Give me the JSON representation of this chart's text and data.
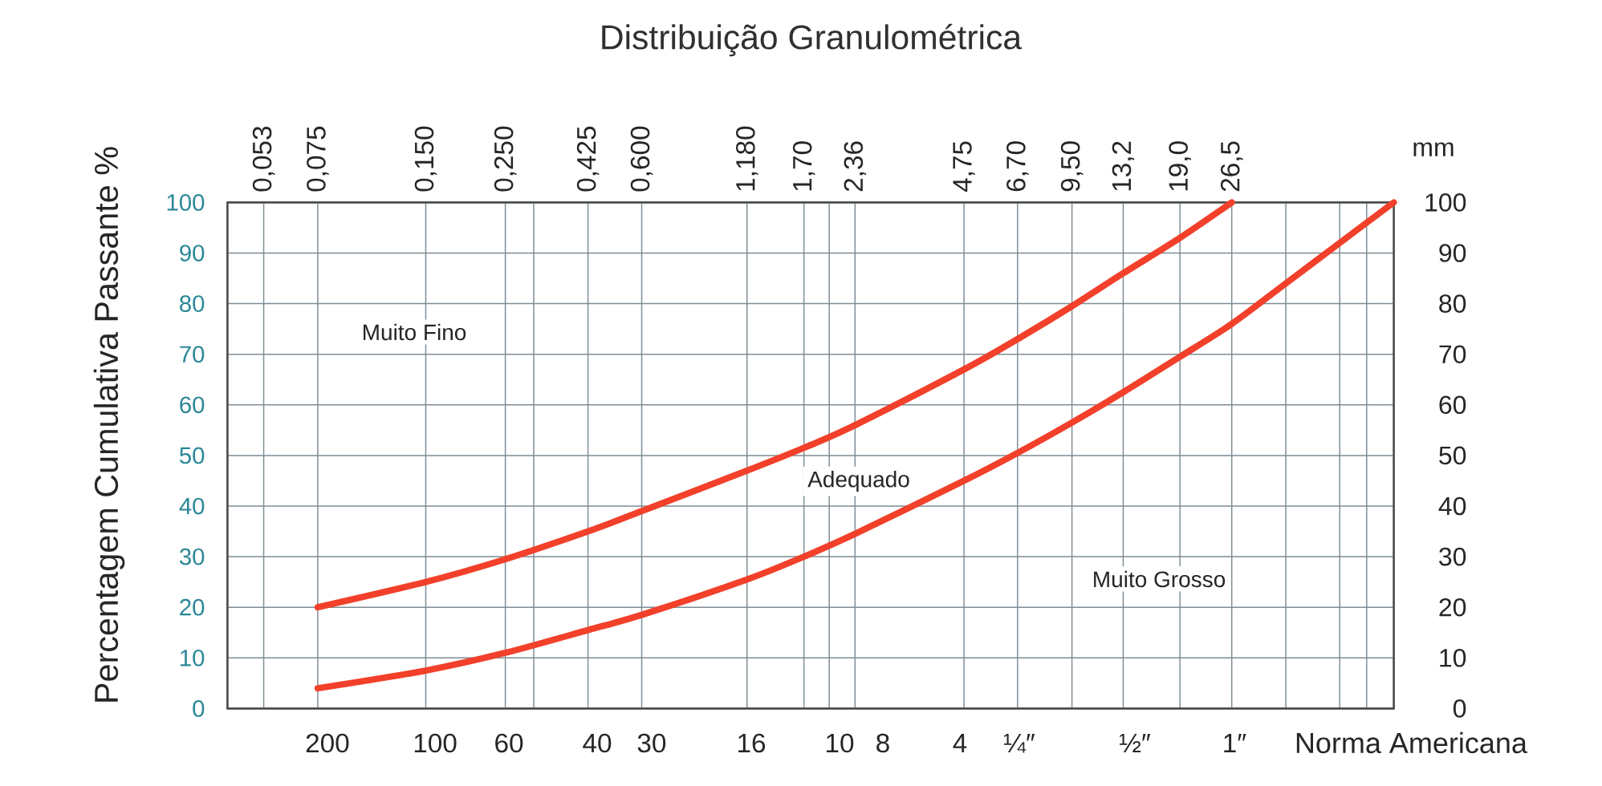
{
  "chart_data": {
    "type": "line",
    "title": "Distribuição Granulométrica",
    "ylabel": "Percentagem Cumulativa Passante %",
    "xlabel": "mm",
    "x2label": "Norma Americana",
    "log": "x",
    "grid": true,
    "line_style": "solid",
    "xlim": [
      0.042,
      75
    ],
    "ylim": [
      0,
      100
    ],
    "y2lim": [
      0,
      100
    ],
    "xticks": [
      {
        "value": 0.053,
        "label": "0,053"
      },
      {
        "value": 0.075,
        "label": "0,075"
      },
      {
        "value": 0.15,
        "label": "0,150"
      },
      {
        "value": 0.25,
        "label": "0,250"
      },
      {
        "value": 0.3,
        "label": null
      },
      {
        "value": 0.425,
        "label": "0,425"
      },
      {
        "value": 0.6,
        "label": "0,600"
      },
      {
        "value": 1.18,
        "label": "1,180"
      },
      {
        "value": 1.7,
        "label": "1,70"
      },
      {
        "value": 2.0,
        "label": null
      },
      {
        "value": 2.36,
        "label": "2,36"
      },
      {
        "value": 4.75,
        "label": "4,75"
      },
      {
        "value": 6.7,
        "label": "6,70"
      },
      {
        "value": 9.5,
        "label": "9,50"
      },
      {
        "value": 13.2,
        "label": "13,2"
      },
      {
        "value": 19,
        "label": "19,0"
      },
      {
        "value": 26.5,
        "label": "26,5"
      },
      {
        "value": 37.5,
        "label": null
      },
      {
        "value": 53,
        "label": null
      },
      {
        "value": 63,
        "label": null
      }
    ],
    "yticks": [
      0,
      10,
      20,
      30,
      40,
      50,
      60,
      70,
      80,
      90,
      100
    ],
    "y2ticks": [
      0,
      10,
      20,
      30,
      40,
      50,
      60,
      70,
      80,
      90,
      100
    ],
    "series": [
      {
        "color": "#f2402a",
        "x": [
          0.075,
          0.15,
          0.25,
          0.425,
          0.6,
          1.18,
          1.7,
          2.36,
          4.75,
          6.7,
          9.5,
          13.2,
          19,
          26.5
        ],
        "values": [
          20,
          25,
          29.5,
          35,
          39,
          47,
          51.5,
          56,
          67,
          73,
          79.5,
          86,
          93,
          100
        ]
      },
      {
        "color": "#f2402a",
        "x": [
          0.075,
          0.15,
          0.25,
          0.425,
          0.6,
          1.18,
          1.7,
          2.36,
          4.75,
          6.7,
          9.5,
          13.2,
          19,
          26.5,
          37.5,
          53,
          63,
          75
        ],
        "values": [
          4,
          7.5,
          11,
          15.5,
          18.5,
          25.5,
          30,
          34.5,
          45,
          50.5,
          56.5,
          62.5,
          69.5,
          76,
          84,
          92,
          96,
          100
        ]
      }
    ],
    "annotations": [
      "Muito Fino",
      "Adequado",
      "Muito Grosso",
      "200",
      "100",
      "60",
      "40",
      "30",
      "16",
      "10",
      "8",
      "4",
      "¼″",
      "½″",
      "1″"
    ]
  }
}
